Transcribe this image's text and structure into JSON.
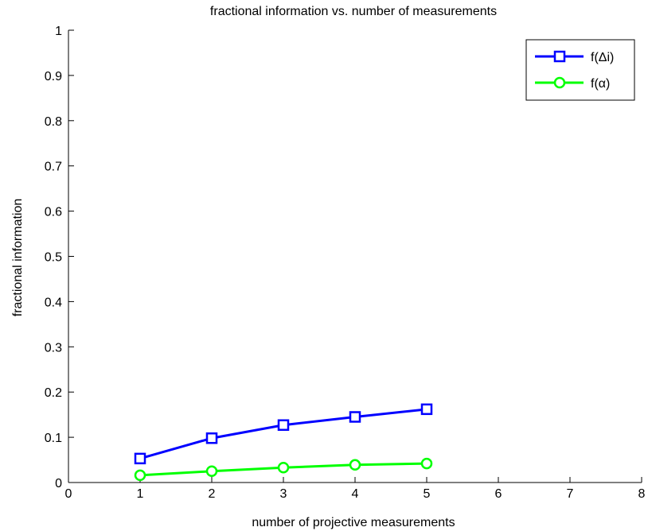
{
  "chart_data": {
    "type": "line",
    "title": "fractional information vs. number of measurements",
    "xlabel": "number of projective measurements",
    "ylabel": "fractional information",
    "xlim": [
      0,
      8
    ],
    "ylim": [
      0,
      1
    ],
    "xticks": [
      "0",
      "1",
      "2",
      "3",
      "4",
      "5",
      "6",
      "7",
      "8"
    ],
    "yticks": [
      "0",
      "0.1",
      "0.2",
      "0.3",
      "0.4",
      "0.5",
      "0.6",
      "0.7",
      "0.8",
      "0.9",
      "1"
    ],
    "x": [
      1,
      2,
      3,
      4,
      5
    ],
    "grid": false,
    "legend_position": "top-right",
    "series": [
      {
        "name": "f(Δi)",
        "marker": "square",
        "color": "#0000ff",
        "values": [
          0.053,
          0.098,
          0.127,
          0.145,
          0.162
        ]
      },
      {
        "name": "f(α)",
        "marker": "circle",
        "color": "#00ff00",
        "values": [
          0.016,
          0.025,
          0.033,
          0.039,
          0.042
        ]
      }
    ]
  }
}
